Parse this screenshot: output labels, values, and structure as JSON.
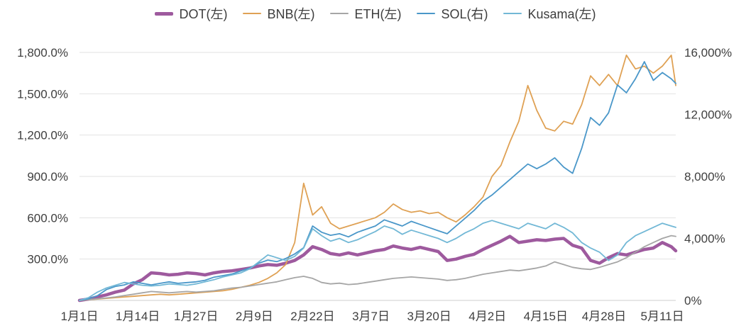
{
  "chart_data": {
    "type": "line",
    "title": "",
    "grid": true,
    "legend_position": "top",
    "x_days": [
      0,
      2,
      4,
      6,
      8,
      10,
      12,
      14,
      16,
      18,
      20,
      22,
      24,
      26,
      28,
      30,
      32,
      34,
      36,
      38,
      40,
      42,
      44,
      46,
      48,
      50,
      52,
      54,
      56,
      58,
      60,
      62,
      64,
      66,
      68,
      70,
      72,
      74,
      76,
      78,
      80,
      82,
      84,
      86,
      88,
      90,
      92,
      94,
      96,
      98,
      100,
      102,
      104,
      106,
      108,
      110,
      112,
      114,
      116,
      118,
      120,
      122,
      124,
      126,
      128,
      130,
      132,
      133
    ],
    "x_axis": {
      "tick_days": [
        0,
        13,
        26,
        39,
        52,
        65,
        78,
        91,
        104,
        117,
        130
      ],
      "tick_labels": [
        "1月1日",
        "1月14日",
        "1月27日",
        "2月9日",
        "2月22日",
        "3月7日",
        "3月20日",
        "4月2日",
        "4月15日",
        "4月28日",
        "5月11日"
      ]
    },
    "left_axis": {
      "range": [
        0,
        1800
      ],
      "tick_values": [
        1800,
        1500,
        1200,
        900,
        600,
        300
      ],
      "tick_labels": [
        "1,800.0%",
        "1,500.0%",
        "1,200.0%",
        "900.0%",
        "600.0%",
        "300.0%"
      ]
    },
    "right_axis": {
      "range": [
        0,
        16000
      ],
      "tick_values": [
        16000,
        12000,
        8000,
        4000,
        0
      ],
      "tick_labels": [
        "16,000%",
        "12,000%",
        "8,000%",
        "4,000%",
        "0%"
      ]
    },
    "series": [
      {
        "name": "DOT",
        "label": "DOT(左)",
        "axis": "left",
        "color": "#9e5a9e",
        "thick": true,
        "values": [
          0,
          10,
          25,
          40,
          60,
          75,
          120,
          150,
          200,
          195,
          185,
          190,
          200,
          195,
          185,
          200,
          210,
          215,
          225,
          235,
          250,
          260,
          255,
          270,
          290,
          330,
          390,
          370,
          340,
          330,
          345,
          330,
          345,
          360,
          370,
          395,
          380,
          370,
          385,
          370,
          355,
          290,
          300,
          320,
          335,
          370,
          400,
          430,
          465,
          420,
          430,
          440,
          435,
          445,
          450,
          400,
          380,
          290,
          270,
          310,
          340,
          330,
          350,
          370,
          380,
          420,
          390,
          360
        ]
      },
      {
        "name": "BNB",
        "label": "BNB(左)",
        "axis": "left",
        "color": "#dfa154",
        "thick": false,
        "values": [
          0,
          5,
          10,
          15,
          20,
          25,
          30,
          35,
          40,
          45,
          40,
          45,
          50,
          55,
          60,
          65,
          70,
          80,
          95,
          110,
          130,
          160,
          200,
          260,
          420,
          850,
          620,
          680,
          560,
          520,
          540,
          560,
          580,
          600,
          640,
          700,
          660,
          640,
          650,
          630,
          640,
          600,
          570,
          620,
          680,
          750,
          900,
          980,
          1150,
          1300,
          1560,
          1380,
          1250,
          1230,
          1300,
          1280,
          1420,
          1630,
          1560,
          1640,
          1560,
          1780,
          1680,
          1700,
          1650,
          1700,
          1780,
          1560
        ]
      },
      {
        "name": "ETH",
        "label": "ETH(左)",
        "axis": "left",
        "color": "#a6a6a6",
        "thick": false,
        "values": [
          0,
          5,
          12,
          18,
          25,
          35,
          45,
          55,
          65,
          60,
          55,
          60,
          65,
          60,
          65,
          70,
          80,
          90,
          95,
          105,
          115,
          125,
          135,
          150,
          165,
          175,
          160,
          130,
          120,
          125,
          115,
          120,
          130,
          140,
          150,
          160,
          165,
          170,
          165,
          160,
          155,
          145,
          150,
          160,
          175,
          190,
          200,
          210,
          220,
          215,
          225,
          235,
          250,
          280,
          260,
          240,
          230,
          225,
          240,
          260,
          280,
          310,
          350,
          390,
          420,
          450,
          470,
          465
        ]
      },
      {
        "name": "SOL",
        "label": "SOL(右)",
        "axis": "right",
        "color": "#4a97c9",
        "thick": false,
        "values": [
          0,
          100,
          300,
          700,
          900,
          1000,
          1200,
          1100,
          1000,
          1100,
          1200,
          1100,
          1150,
          1200,
          1300,
          1500,
          1600,
          1700,
          1900,
          2100,
          2400,
          2600,
          2500,
          2700,
          3000,
          3400,
          4800,
          4400,
          4200,
          4300,
          4100,
          4400,
          4600,
          4800,
          5200,
          5000,
          4800,
          5100,
          4900,
          4700,
          4500,
          4300,
          4800,
          5300,
          5800,
          6400,
          6800,
          7300,
          7800,
          8300,
          8800,
          8500,
          8800,
          9200,
          8600,
          8200,
          9800,
          11800,
          11300,
          12100,
          13900,
          13400,
          14300,
          15400,
          14200,
          14700,
          14300,
          14000
        ]
      },
      {
        "name": "Kusama",
        "label": "Kusama(左)",
        "axis": "left",
        "color": "#72b8d6",
        "thick": false,
        "values": [
          0,
          20,
          60,
          90,
          110,
          130,
          120,
          110,
          105,
          110,
          120,
          115,
          110,
          120,
          135,
          150,
          170,
          185,
          200,
          230,
          280,
          330,
          310,
          290,
          320,
          380,
          520,
          470,
          430,
          450,
          420,
          440,
          470,
          500,
          540,
          520,
          480,
          510,
          490,
          470,
          450,
          420,
          450,
          490,
          520,
          560,
          580,
          560,
          540,
          520,
          560,
          540,
          520,
          560,
          530,
          490,
          420,
          380,
          350,
          290,
          330,
          420,
          470,
          500,
          530,
          560,
          540,
          530
        ]
      }
    ],
    "colors": {
      "grid": "#e2e2e2",
      "baseline": "#cccccc",
      "text": "#3f3f3f"
    }
  }
}
